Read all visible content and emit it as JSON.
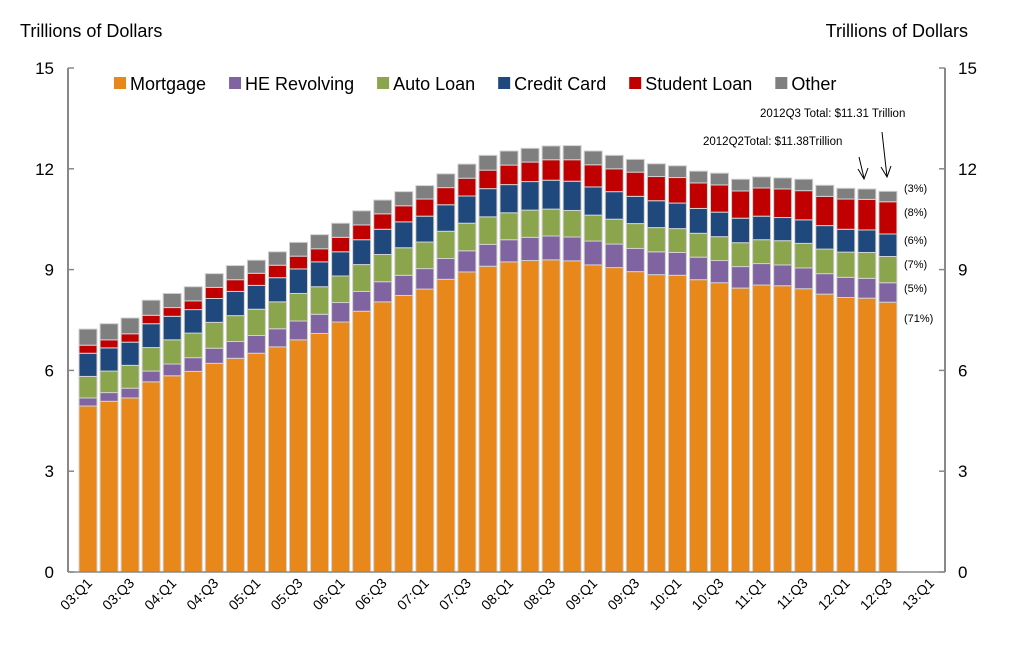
{
  "chart_data": {
    "type": "bar",
    "stacked": true,
    "left_axis_title": "Trillions of Dollars",
    "right_axis_title": "Trillions of Dollars",
    "ylim": [
      0,
      15
    ],
    "yticks": [
      0,
      3,
      6,
      9,
      12,
      15
    ],
    "xtick_labels": [
      "03:Q1",
      "03:Q3",
      "04:Q1",
      "04:Q3",
      "05:Q1",
      "05:Q3",
      "06:Q1",
      "06:Q3",
      "07:Q1",
      "07:Q3",
      "08:Q1",
      "08:Q3",
      "09:Q1",
      "09:Q3",
      "10:Q1",
      "10:Q3",
      "11:Q1",
      "11:Q3",
      "12:Q1",
      "12:Q3",
      "13:Q1"
    ],
    "categories": [
      "03:Q1",
      "03:Q2",
      "03:Q3",
      "03:Q4",
      "04:Q1",
      "04:Q2",
      "04:Q3",
      "04:Q4",
      "05:Q1",
      "05:Q2",
      "05:Q3",
      "05:Q4",
      "06:Q1",
      "06:Q2",
      "06:Q3",
      "06:Q4",
      "07:Q1",
      "07:Q2",
      "07:Q3",
      "07:Q4",
      "08:Q1",
      "08:Q2",
      "08:Q3",
      "08:Q4",
      "09:Q1",
      "09:Q2",
      "09:Q3",
      "09:Q4",
      "10:Q1",
      "10:Q2",
      "10:Q3",
      "10:Q4",
      "11:Q1",
      "11:Q2",
      "11:Q3",
      "11:Q4",
      "12:Q1",
      "12:Q2",
      "12:Q3"
    ],
    "series": [
      {
        "name": "Mortgage",
        "color": "#E8871A",
        "share": "(71%)",
        "values": [
          4.94,
          5.08,
          5.18,
          5.66,
          5.84,
          5.97,
          6.21,
          6.36,
          6.51,
          6.7,
          6.91,
          7.1,
          7.44,
          7.76,
          8.04,
          8.23,
          8.42,
          8.71,
          8.93,
          9.1,
          9.23,
          9.27,
          9.29,
          9.26,
          9.14,
          9.06,
          8.94,
          8.85,
          8.83,
          8.7,
          8.61,
          8.45,
          8.54,
          8.52,
          8.43,
          8.27,
          8.17,
          8.15,
          8.03
        ]
      },
      {
        "name": "HE Revolving",
        "color": "#8064A2",
        "share": "(5%)",
        "values": [
          0.24,
          0.26,
          0.29,
          0.32,
          0.35,
          0.41,
          0.45,
          0.5,
          0.53,
          0.54,
          0.56,
          0.57,
          0.58,
          0.59,
          0.6,
          0.6,
          0.61,
          0.62,
          0.63,
          0.65,
          0.66,
          0.69,
          0.71,
          0.71,
          0.71,
          0.7,
          0.69,
          0.68,
          0.68,
          0.67,
          0.66,
          0.64,
          0.64,
          0.62,
          0.62,
          0.61,
          0.6,
          0.59,
          0.58
        ]
      },
      {
        "name": "Auto Loan",
        "color": "#8BA54C",
        "share": "(7%)",
        "values": [
          0.64,
          0.64,
          0.68,
          0.7,
          0.72,
          0.73,
          0.77,
          0.77,
          0.78,
          0.8,
          0.82,
          0.82,
          0.79,
          0.8,
          0.81,
          0.82,
          0.79,
          0.81,
          0.82,
          0.82,
          0.8,
          0.81,
          0.8,
          0.79,
          0.77,
          0.74,
          0.74,
          0.72,
          0.71,
          0.71,
          0.71,
          0.71,
          0.71,
          0.72,
          0.73,
          0.73,
          0.75,
          0.77,
          0.78
        ]
      },
      {
        "name": "Credit Card",
        "color": "#1F497D",
        "share": "(6%)",
        "values": [
          0.69,
          0.69,
          0.69,
          0.71,
          0.7,
          0.7,
          0.71,
          0.72,
          0.71,
          0.72,
          0.73,
          0.74,
          0.72,
          0.74,
          0.75,
          0.77,
          0.77,
          0.79,
          0.81,
          0.84,
          0.84,
          0.85,
          0.86,
          0.87,
          0.84,
          0.82,
          0.81,
          0.8,
          0.76,
          0.74,
          0.73,
          0.73,
          0.7,
          0.69,
          0.7,
          0.7,
          0.68,
          0.67,
          0.67
        ]
      },
      {
        "name": "Student Loan",
        "color": "#C00000",
        "share": "(8%)",
        "values": [
          0.24,
          0.24,
          0.25,
          0.25,
          0.26,
          0.26,
          0.33,
          0.35,
          0.36,
          0.37,
          0.38,
          0.39,
          0.43,
          0.44,
          0.46,
          0.48,
          0.51,
          0.51,
          0.53,
          0.55,
          0.58,
          0.58,
          0.61,
          0.64,
          0.66,
          0.68,
          0.72,
          0.72,
          0.76,
          0.76,
          0.81,
          0.81,
          0.84,
          0.85,
          0.87,
          0.87,
          0.9,
          0.91,
          0.96
        ]
      },
      {
        "name": "Other",
        "color": "#7F7F7F",
        "share": "(3%)",
        "values": [
          0.48,
          0.48,
          0.47,
          0.45,
          0.42,
          0.42,
          0.41,
          0.42,
          0.39,
          0.4,
          0.41,
          0.42,
          0.42,
          0.42,
          0.41,
          0.42,
          0.4,
          0.41,
          0.42,
          0.44,
          0.42,
          0.41,
          0.41,
          0.42,
          0.41,
          0.4,
          0.38,
          0.38,
          0.35,
          0.35,
          0.35,
          0.35,
          0.33,
          0.33,
          0.34,
          0.33,
          0.32,
          0.31,
          0.31
        ]
      }
    ],
    "annotations": [
      "2012Q3 Total: $11.31 Trillion",
      "2012Q2Total: $11.38Trillion"
    ],
    "legend": "top"
  }
}
